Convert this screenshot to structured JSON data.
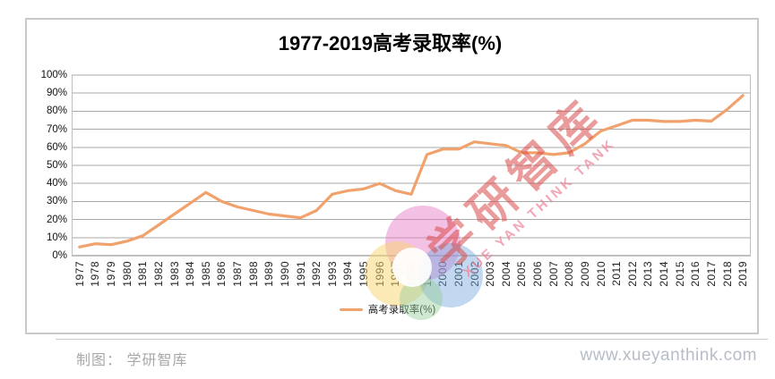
{
  "title": "1977-2019高考录取率(%)",
  "chart_data": {
    "type": "line",
    "title": "1977-2019高考录取率(%)",
    "categories": [
      "1977",
      "1978",
      "1979",
      "1980",
      "1981",
      "1982",
      "1983",
      "1984",
      "1985",
      "1986",
      "1987",
      "1988",
      "1989",
      "1990",
      "1991",
      "1992",
      "1993",
      "1994",
      "1995",
      "1996",
      "1997",
      "1998",
      "1999",
      "2000",
      "2001",
      "2002",
      "2003",
      "2004",
      "2005",
      "2006",
      "2007",
      "2008",
      "2009",
      "2010",
      "2011",
      "2012",
      "2013",
      "2014",
      "2015",
      "2016",
      "2017",
      "2018",
      "2019"
    ],
    "series": [
      {
        "name": "高考录取率(%)",
        "color": "#F1A26C",
        "values": [
          4.8,
          6.6,
          6.1,
          8,
          11,
          17,
          23,
          29,
          35,
          30,
          27,
          25,
          23,
          22,
          21,
          25,
          34,
          36,
          37,
          40,
          36,
          34,
          56,
          59,
          59,
          63,
          62,
          61,
          57,
          57,
          56,
          57,
          62,
          69,
          72,
          75,
          75,
          74.3,
          74.3,
          75,
          74.5,
          81,
          88.7
        ]
      }
    ],
    "xlabel": "",
    "ylabel": "",
    "ylim": [
      0,
      100
    ],
    "yticks": [
      0,
      10,
      20,
      30,
      40,
      50,
      60,
      70,
      80,
      90,
      100
    ],
    "ytick_suffix": "%",
    "grid": true,
    "legend_position": "bottom"
  },
  "legend": {
    "label": "高考录取率(%)"
  },
  "watermark": {
    "text_cn": "学研智库",
    "text_en": "XUE YAN THINK TANK",
    "logo": "pinwheel-logo"
  },
  "footer": {
    "credit": "制图： 学研智库",
    "website": "www.xueyanthink.com"
  },
  "colors": {
    "line": "#F1A26C",
    "gridline": "#a9a9a9",
    "axis": "#808080",
    "plot_border": "#bfbfbf",
    "frame_border": "#c9c9c9",
    "watermark_red": "rgba(216,74,74,0.55)",
    "watermark_pink": "rgba(238,128,150,0.7)",
    "footer_gray": "#a8a8a8",
    "website_gray": "#b7bdc6"
  }
}
